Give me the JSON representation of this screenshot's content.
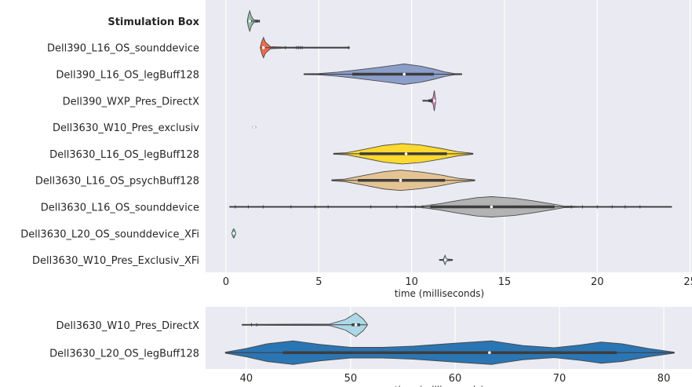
{
  "chart_data": [
    {
      "type": "violin",
      "title": "",
      "xlabel": "time (milliseconds)",
      "ylabel": "",
      "xlim": [
        -1.1,
        25.1
      ],
      "xticks": [
        0,
        5,
        10,
        15,
        20,
        25
      ],
      "xtick_labels": [
        "0",
        "5",
        "10",
        "15",
        "20",
        "25"
      ],
      "grid": true,
      "legend": "none",
      "categories": [
        {
          "name": "Stimulation Box",
          "bold": true,
          "color": "#8fc0a9",
          "min": 1.15,
          "max": 1.8,
          "q1": 1.22,
          "median": 1.28,
          "q3": 1.38,
          "shape": [
            [
              1.15,
              0.05
            ],
            [
              1.2,
              0.55
            ],
            [
              1.28,
              1.0
            ],
            [
              1.36,
              0.5
            ],
            [
              1.5,
              0.12
            ],
            [
              1.8,
              0.02
            ]
          ],
          "outliers": [
            1.62,
            1.7,
            1.8
          ]
        },
        {
          "name": "Dell390_L16_OS_sounddevice",
          "color": "#f26b4f",
          "min": 1.85,
          "max": 6.65,
          "q1": 1.97,
          "median": 2.02,
          "q3": 2.1,
          "shape": [
            [
              1.85,
              0.05
            ],
            [
              1.93,
              0.6
            ],
            [
              2.02,
              1.0
            ],
            [
              2.12,
              0.55
            ],
            [
              2.4,
              0.1
            ],
            [
              3.2,
              0.05
            ],
            [
              6.65,
              0.01
            ]
          ],
          "outliers": [
            3.2,
            3.8,
            3.9,
            4.0,
            4.1,
            6.6
          ]
        },
        {
          "name": "Dell390_L16_OS_legBuff128",
          "color": "#8c9fcb",
          "min": 4.2,
          "max": 12.7,
          "q1": 6.8,
          "median": 9.6,
          "q3": 11.2,
          "shape": [
            [
              4.2,
              0.02
            ],
            [
              5.0,
              0.06
            ],
            [
              6.0,
              0.2
            ],
            [
              7.0,
              0.4
            ],
            [
              8.0,
              0.62
            ],
            [
              9.0,
              0.85
            ],
            [
              9.6,
              1.0
            ],
            [
              10.5,
              0.78
            ],
            [
              11.2,
              0.5
            ],
            [
              11.8,
              0.22
            ],
            [
              12.3,
              0.06
            ],
            [
              12.7,
              0.02
            ]
          ],
          "outliers": []
        },
        {
          "name": "Dell390_WXP_Pres_DirectX",
          "color": "#e78ac3",
          "min": 10.6,
          "max": 11.3,
          "q1": 10.9,
          "median": 11.22,
          "q3": 11.25,
          "shape": [
            [
              10.6,
              0.02
            ],
            [
              11.0,
              0.05
            ],
            [
              11.15,
              0.3
            ],
            [
              11.22,
              1.0
            ],
            [
              11.28,
              0.3
            ],
            [
              11.3,
              0.02
            ]
          ],
          "outliers": []
        },
        {
          "name": "Dell3630_W10_Pres_exclusiv",
          "color": "#a6d854",
          "min": 1.45,
          "max": 1.6,
          "q1": 1.49,
          "median": 1.52,
          "q3": 1.55,
          "shape": [
            [
              1.45,
              0.05
            ],
            [
              1.52,
              0.12
            ],
            [
              1.6,
              0.05
            ]
          ],
          "outliers": []
        },
        {
          "name": "Dell3630_L16_OS_legBuff128",
          "color": "#ffd92f",
          "min": 5.8,
          "max": 13.3,
          "q1": 7.2,
          "median": 9.7,
          "q3": 11.9,
          "shape": [
            [
              5.8,
              0.02
            ],
            [
              6.5,
              0.1
            ],
            [
              7.5,
              0.45
            ],
            [
              8.5,
              0.82
            ],
            [
              9.5,
              1.0
            ],
            [
              10.5,
              0.85
            ],
            [
              11.5,
              0.55
            ],
            [
              12.5,
              0.2
            ],
            [
              13.3,
              0.02
            ]
          ],
          "outliers": []
        },
        {
          "name": "Dell3630_L16_OS_psychBuff128",
          "color": "#e5c494",
          "min": 5.7,
          "max": 13.4,
          "q1": 7.1,
          "median": 9.4,
          "q3": 11.8,
          "shape": [
            [
              5.7,
              0.02
            ],
            [
              6.4,
              0.12
            ],
            [
              7.5,
              0.5
            ],
            [
              8.5,
              0.85
            ],
            [
              9.4,
              1.0
            ],
            [
              10.5,
              0.82
            ],
            [
              11.5,
              0.55
            ],
            [
              12.5,
              0.2
            ],
            [
              13.4,
              0.02
            ]
          ],
          "outliers": []
        },
        {
          "name": "Dell3630_L16_OS_sounddevice",
          "color": "#b3b3b3",
          "min": 0.2,
          "max": 24.0,
          "q1": 11.0,
          "median": 14.3,
          "q3": 17.7,
          "shape": [
            [
              0.2,
              0.01
            ],
            [
              9.5,
              0.02
            ],
            [
              10.5,
              0.06
            ],
            [
              11.5,
              0.3
            ],
            [
              12.5,
              0.62
            ],
            [
              13.5,
              0.9
            ],
            [
              14.3,
              1.0
            ],
            [
              15.5,
              0.85
            ],
            [
              16.5,
              0.6
            ],
            [
              17.5,
              0.3
            ],
            [
              18.2,
              0.08
            ],
            [
              19.0,
              0.03
            ],
            [
              24.0,
              0.01
            ]
          ],
          "outliers": [
            0.5,
            1.2,
            2.0,
            3.5,
            4.8,
            5.5,
            7.8,
            9.2,
            10.2,
            10.6,
            18.6,
            19.2,
            20.0,
            20.8,
            21.5,
            22.3
          ]
        },
        {
          "name": "Dell3630_L20_OS_sounddevice_XFi",
          "color": "#66c2a5",
          "min": 0.32,
          "max": 0.52,
          "q1": 0.38,
          "median": 0.42,
          "q3": 0.46,
          "shape": [
            [
              0.32,
              0.02
            ],
            [
              0.38,
              0.35
            ],
            [
              0.42,
              0.45
            ],
            [
              0.47,
              0.3
            ],
            [
              0.52,
              0.02
            ]
          ],
          "outliers": []
        },
        {
          "name": "Dell3630_W10_Pres_Exclusiv_XFi",
          "color": "#a6cee3",
          "min": 11.5,
          "max": 12.2,
          "q1": 11.75,
          "median": 11.82,
          "q3": 11.9,
          "shape": [
            [
              11.5,
              0.01
            ],
            [
              11.7,
              0.05
            ],
            [
              11.8,
              0.45
            ],
            [
              11.88,
              0.1
            ],
            [
              12.2,
              0.01
            ]
          ],
          "outliers": []
        }
      ]
    },
    {
      "type": "violin",
      "title": "",
      "xlabel": "time (milliseconds)",
      "ylabel": "",
      "xlim": [
        36.1,
        82.7
      ],
      "xticks": [
        40,
        50,
        60,
        70,
        80
      ],
      "xtick_labels": [
        "40",
        "50",
        "60",
        "70",
        "80"
      ],
      "grid": true,
      "legend": "none",
      "categories": [
        {
          "name": "Dell3630_W10_Pres_DirectX",
          "color": "#add8e6",
          "min": 39.6,
          "max": 51.6,
          "q1": 50.1,
          "median": 50.5,
          "q3": 50.9,
          "shape": [
            [
              39.6,
              0.02
            ],
            [
              41.0,
              0.03
            ],
            [
              48.0,
              0.06
            ],
            [
              49.5,
              0.45
            ],
            [
              50.5,
              1.0
            ],
            [
              51.2,
              0.5
            ],
            [
              51.6,
              0.04
            ]
          ],
          "outliers": [
            40.5,
            41.0
          ]
        },
        {
          "name": "Dell3630_L20_OS_legBuff128",
          "color": "#2a75b3",
          "min": 38.0,
          "max": 81.0,
          "q1": 43.5,
          "median": 63.3,
          "q3": 75.5,
          "shape": [
            [
              38.0,
              0.02
            ],
            [
              40.0,
              0.35
            ],
            [
              42.0,
              0.75
            ],
            [
              44.5,
              1.0
            ],
            [
              47.0,
              0.7
            ],
            [
              50.0,
              0.45
            ],
            [
              53.0,
              0.45
            ],
            [
              56.0,
              0.55
            ],
            [
              60.0,
              0.8
            ],
            [
              63.5,
              1.0
            ],
            [
              66.5,
              0.6
            ],
            [
              69.5,
              0.42
            ],
            [
              72.0,
              0.65
            ],
            [
              74.0,
              0.9
            ],
            [
              76.0,
              0.75
            ],
            [
              78.5,
              0.35
            ],
            [
              81.0,
              0.02
            ]
          ],
          "outliers": []
        }
      ]
    }
  ]
}
